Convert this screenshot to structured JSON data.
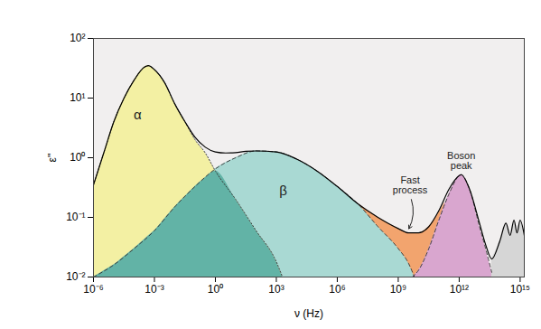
{
  "chart_data": {
    "type": "area",
    "x_label": "ν (Hz)",
    "y_label": "ε''",
    "log": true,
    "grid": false,
    "xlim": [
      1e-06,
      1600000000000000.0
    ],
    "ylim": [
      0.01,
      100
    ],
    "xticks": [
      {
        "value": 1e-06,
        "label": "10⁻⁶"
      },
      {
        "value": 0.001,
        "label": "10⁻³"
      },
      {
        "value": 1,
        "label": "10⁰"
      },
      {
        "value": 1000,
        "label": "10³"
      },
      {
        "value": 1000000.0,
        "label": "10⁶"
      },
      {
        "value": 1000000000.0,
        "label": "10⁹"
      },
      {
        "value": 1000000000000.0,
        "label": "10¹²"
      },
      {
        "value": 1000000000000000.0,
        "label": "10¹⁵"
      }
    ],
    "yticks": [
      {
        "value": 0.01,
        "label": "10⁻²"
      },
      {
        "value": 0.1,
        "label": "10⁻¹"
      },
      {
        "value": 1,
        "label": "10⁰"
      },
      {
        "value": 10,
        "label": "10¹"
      },
      {
        "value": 100,
        "label": "10²"
      }
    ],
    "series": [
      {
        "name": "Fast process",
        "type": "area",
        "color": "#f2a46e",
        "x": [
          10000000.0,
          32000000.0,
          100000000.0,
          320000000.0,
          1000000000.0,
          3200000000.0,
          10000000000.0,
          32000000000.0,
          100000000000.0,
          200000000000.0
        ],
        "values": [
          0.17,
          0.13,
          0.1,
          0.08,
          0.065,
          0.055,
          0.055,
          0.07,
          0.12,
          0.18
        ]
      },
      {
        "name": "β",
        "type": "area",
        "color": "#a9d9d3",
        "line_style": "dashed",
        "x": [
          1e-06,
          1e-05,
          0.0001,
          0.001,
          0.01,
          0.1,
          1,
          10,
          100,
          1000,
          10000.0,
          100000.0,
          1000000.0,
          10000000.0,
          100000000.0,
          1000000000.0,
          3200000000.0,
          6300000000.0
        ],
        "values": [
          0.01,
          0.016,
          0.03,
          0.06,
          0.15,
          0.33,
          0.65,
          1.0,
          1.3,
          1.25,
          0.95,
          0.6,
          0.33,
          0.17,
          0.07,
          0.03,
          0.017,
          0.01
        ]
      },
      {
        "name": "α",
        "type": "area",
        "color": "#f3f0a3",
        "line_style": "dotted",
        "x": [
          1e-06,
          3.2e-06,
          1e-05,
          3.2e-05,
          0.0001,
          0.00032,
          0.0005,
          0.001,
          0.0032,
          0.01,
          0.032,
          0.1,
          0.32,
          1,
          10,
          100,
          1000,
          2000
        ],
        "values": [
          0.35,
          1.2,
          4,
          10,
          20,
          33,
          35,
          30,
          18,
          8,
          4,
          2,
          1.2,
          0.6,
          0.2,
          0.06,
          0.018,
          0.01
        ]
      },
      {
        "name": "Boson peak",
        "type": "area",
        "color": "#d9a6cf",
        "line_style": "dashed",
        "x": [
          5000000000.0,
          10000000000.0,
          32000000000.0,
          100000000000.0,
          320000000000.0,
          1000000000000.0,
          1260000000000.0,
          3200000000000.0,
          10000000000000.0,
          20000000000000.0,
          40000000000000.0
        ],
        "values": [
          0.01,
          0.013,
          0.03,
          0.09,
          0.25,
          0.5,
          0.52,
          0.3,
          0.07,
          0.03,
          0.012
        ]
      },
      {
        "name": null,
        "type": "area",
        "color": "#d6d6d6",
        "x": [
          40000000000000.0,
          100000000000000.0,
          200000000000000.0,
          320000000000000.0,
          500000000000000.0,
          700000000000000.0,
          1000000000000000.0,
          1600000000000000.0
        ],
        "values": [
          0.02,
          0.04,
          0.08,
          0.05,
          0.09,
          0.055,
          0.09,
          0.05
        ]
      },
      {
        "name": null,
        "type": "line",
        "color": "#000000",
        "line_style": "solid",
        "x": [
          1e-06,
          3.2e-06,
          1e-05,
          3.2e-05,
          0.0001,
          0.00032,
          0.0005,
          0.001,
          0.0032,
          0.01,
          0.032,
          0.1,
          0.32,
          1,
          3.2,
          10,
          32,
          100,
          1000,
          10000.0,
          100000.0,
          1000000.0,
          10000000.0,
          100000000.0,
          1000000000.0,
          3200000000.0,
          10000000000.0,
          32000000000.0,
          100000000000.0,
          320000000000.0,
          1000000000000.0,
          1260000000000.0,
          3200000000000.0,
          10000000000000.0,
          20000000000000.0,
          40000000000000.0,
          100000000000000.0,
          200000000000000.0,
          320000000000000.0,
          500000000000000.0,
          700000000000000.0,
          1000000000000000.0,
          1600000000000000.0
        ],
        "values": [
          0.35,
          1.2,
          4,
          10,
          20,
          33,
          35,
          30,
          18,
          8,
          4,
          2.2,
          1.5,
          1.25,
          1.2,
          1.22,
          1.28,
          1.3,
          1.25,
          0.95,
          0.6,
          0.33,
          0.17,
          0.1,
          0.065,
          0.055,
          0.055,
          0.07,
          0.13,
          0.3,
          0.5,
          0.52,
          0.3,
          0.08,
          0.035,
          0.02,
          0.04,
          0.08,
          0.05,
          0.09,
          0.055,
          0.09,
          0.05
        ]
      }
    ]
  }
}
